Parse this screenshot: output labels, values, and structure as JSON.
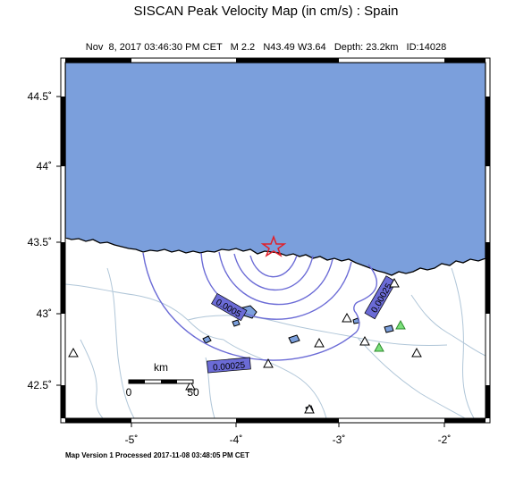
{
  "title": "SISCAN Peak Velocity Map (in cm/s) : Spain",
  "event": {
    "datetime": "Nov  8, 2017 03:46:30 PM CET",
    "magnitude": "M 2.2",
    "location": "N43.49 W3.64",
    "depth": "Depth: 23.2km",
    "id": "ID:14028"
  },
  "footer": "Map Version 1 Processed 2017-11-08 03:48:05 PM CET",
  "axes": {
    "lon_labels": [
      "-5˚",
      "-4˚",
      "-3˚",
      "-2˚"
    ],
    "lat_labels": [
      "44.5˚",
      "44˚",
      "43.5˚",
      "43˚",
      "42.5˚"
    ]
  },
  "scale_bar": {
    "unit": "km",
    "start": "0",
    "end": "50"
  },
  "contours": [
    {
      "label": "0.0005",
      "value": 0.0005
    },
    {
      "label": "0.00025",
      "value": 0.00025
    },
    {
      "label": "0.00025",
      "value": 0.00025
    }
  ],
  "colors": {
    "sea": "#7b9fdc",
    "contour": "#6b6bd6",
    "contour_label_bg": "#6b6bd6",
    "epicenter": "#e0202a",
    "station_triggered": "#7be07b",
    "rivers": "#b0c6d8"
  }
}
